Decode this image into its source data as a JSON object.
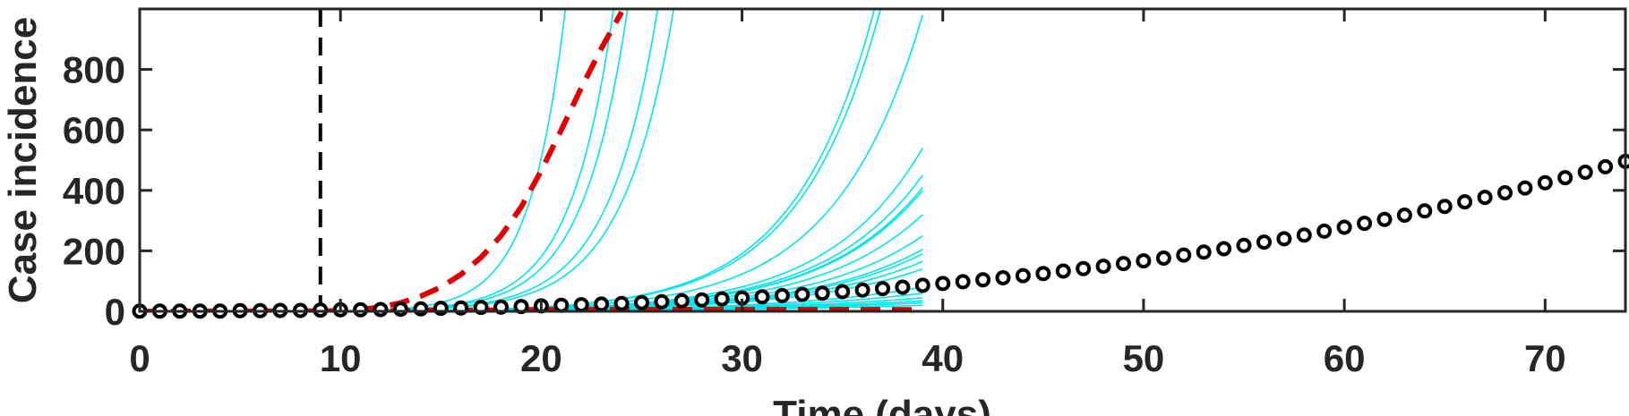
{
  "chart_data": {
    "type": "line",
    "title": "",
    "xlabel": "Time (days)",
    "ylabel": "Case incidence",
    "xlim": [
      0,
      74
    ],
    "ylim": [
      0,
      1000
    ],
    "xticks": [
      0,
      10,
      20,
      30,
      40,
      50,
      60,
      70
    ],
    "yticks": [
      0,
      200,
      400,
      600,
      800
    ],
    "grid": false,
    "legend": "none",
    "vline": {
      "x": 9,
      "color": "#000000",
      "style": "dashed"
    },
    "series": [
      {
        "kind": "ensemble",
        "color": "#00E5EE",
        "x_start": 9,
        "x_end": 39,
        "curves": [
          {
            "x": 21.2,
            "y": 1000
          },
          {
            "x": 23.6,
            "y": 1000
          },
          {
            "x": 24.3,
            "y": 1000
          },
          {
            "x": 25.8,
            "y": 1000
          },
          {
            "x": 26.6,
            "y": 1000
          },
          {
            "x": 36.6,
            "y": 1000
          },
          {
            "x": 36.9,
            "y": 1000
          },
          {
            "x": 39,
            "y": 980
          },
          {
            "x": 39,
            "y": 540
          },
          {
            "x": 39,
            "y": 450
          },
          {
            "x": 39,
            "y": 410
          },
          {
            "x": 39,
            "y": 400
          },
          {
            "x": 39,
            "y": 320
          },
          {
            "x": 39,
            "y": 250
          },
          {
            "x": 39,
            "y": 205
          },
          {
            "x": 39,
            "y": 190
          },
          {
            "x": 39,
            "y": 165
          },
          {
            "x": 39,
            "y": 140
          },
          {
            "x": 39,
            "y": 80
          },
          {
            "x": 39,
            "y": 60
          },
          {
            "x": 39,
            "y": 45
          },
          {
            "x": 39,
            "y": 35
          },
          {
            "x": 39,
            "y": 28
          },
          {
            "x": 39,
            "y": 20
          }
        ]
      },
      {
        "kind": "mean-upper",
        "color": "#E00000",
        "style": "dashed",
        "x": [
          0,
          9,
          10,
          11,
          12,
          13,
          14,
          15,
          16,
          17,
          18,
          19,
          20,
          21,
          22,
          23,
          24
        ],
        "y": [
          0,
          0,
          2,
          6,
          14,
          28,
          50,
          80,
          122,
          178,
          250,
          345,
          465,
          600,
          740,
          870,
          990
        ]
      },
      {
        "kind": "mean-lower",
        "color": "#E00000",
        "style": "dashed",
        "x": [
          0,
          10,
          15,
          20,
          25,
          30,
          35,
          39
        ],
        "y": [
          0,
          1,
          3,
          5,
          6,
          6,
          6,
          5
        ]
      },
      {
        "kind": "observed",
        "marker": "circle",
        "color": "#000000",
        "x": [
          0,
          1,
          2,
          3,
          4,
          5,
          6,
          7,
          8,
          9,
          10,
          11,
          12,
          13,
          14,
          15,
          16,
          17,
          18,
          19,
          20,
          21,
          22,
          23,
          24,
          25,
          26,
          27,
          28,
          29,
          30,
          31,
          32,
          33,
          34,
          35,
          36,
          37,
          38,
          39,
          40,
          41,
          42,
          43,
          44,
          45,
          46,
          47,
          48,
          49,
          50,
          51,
          52,
          53,
          54,
          55,
          56,
          57,
          58,
          59,
          60,
          61,
          62,
          63,
          64,
          65,
          66,
          67,
          68,
          69,
          70,
          71,
          72,
          73,
          74
        ],
        "y": [
          1,
          1,
          1,
          1,
          1,
          2,
          2,
          3,
          3,
          4,
          5,
          5,
          6,
          7,
          8,
          10,
          11,
          13,
          14,
          16,
          18,
          20,
          22,
          24,
          26,
          29,
          32,
          35,
          38,
          41,
          44,
          48,
          52,
          56,
          60,
          65,
          70,
          75,
          80,
          86,
          92,
          98,
          104,
          111,
          118,
          125,
          133,
          141,
          149,
          158,
          167,
          176,
          186,
          196,
          207,
          218,
          229,
          240,
          252,
          265,
          278,
          291,
          304,
          318,
          332,
          347,
          362,
          377,
          392,
          408,
          425,
          442,
          460,
          478,
          496
        ]
      }
    ]
  }
}
